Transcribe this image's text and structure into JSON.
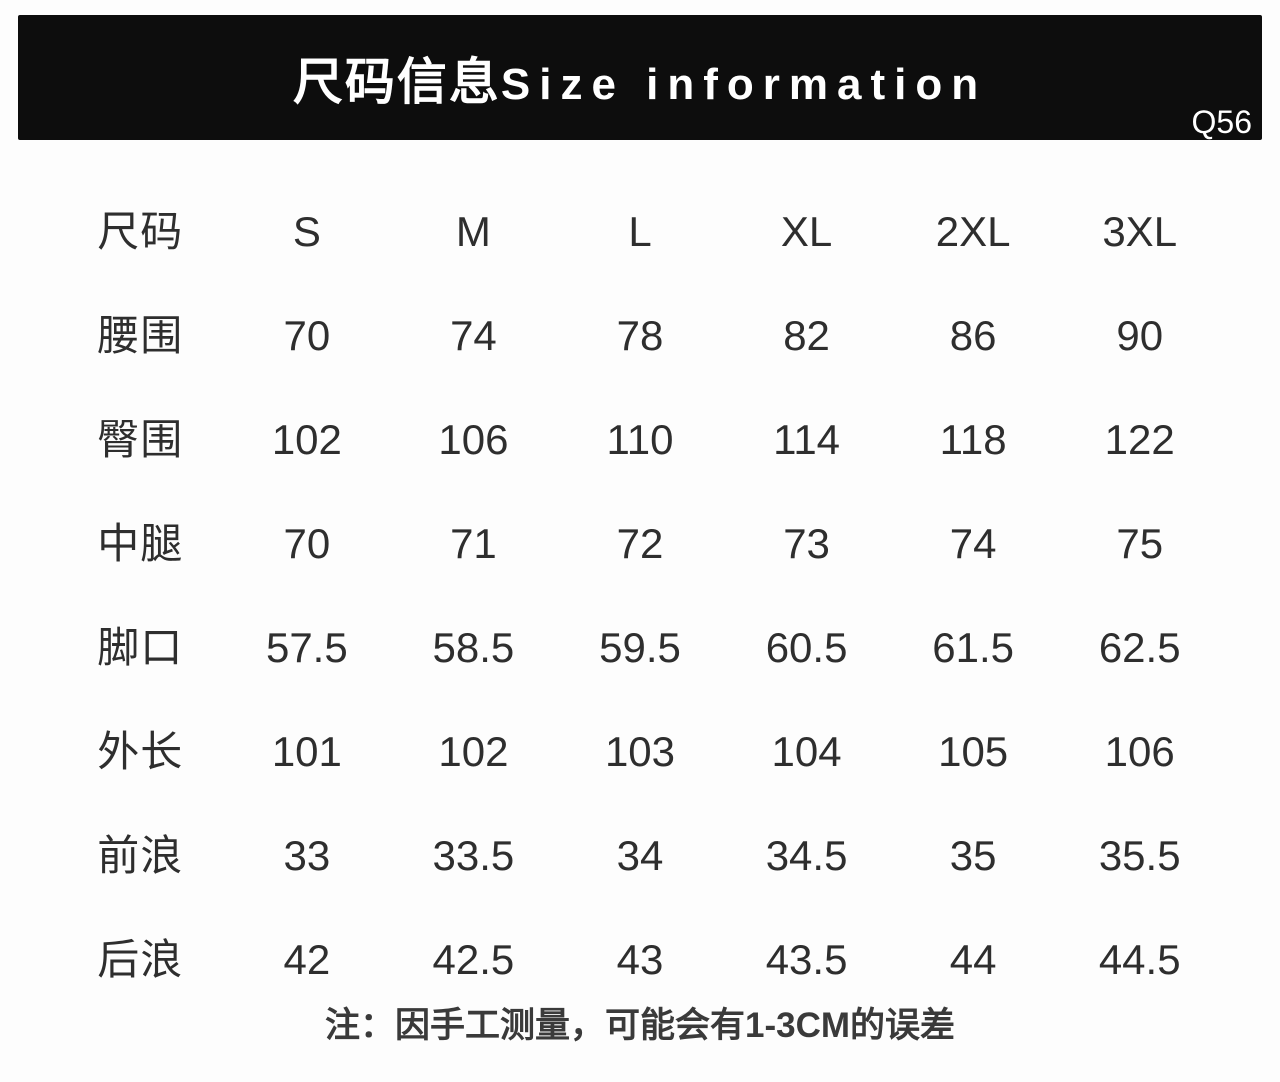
{
  "header": {
    "title_zh": "尺码信息",
    "title_en": "Size information",
    "code": "Q56"
  },
  "table": {
    "header_row": {
      "label": "尺码",
      "sizes": [
        "S",
        "M",
        "L",
        "XL",
        "2XL",
        "3XL"
      ]
    },
    "rows": [
      {
        "label": "腰围",
        "values": [
          "70",
          "74",
          "78",
          "82",
          "86",
          "90"
        ]
      },
      {
        "label": "臀围",
        "values": [
          "102",
          "106",
          "110",
          "114",
          "118",
          "122"
        ]
      },
      {
        "label": "中腿",
        "values": [
          "70",
          "71",
          "72",
          "73",
          "74",
          "75"
        ]
      },
      {
        "label": "脚口",
        "values": [
          "57.5",
          "58.5",
          "59.5",
          "60.5",
          "61.5",
          "62.5"
        ]
      },
      {
        "label": "外长",
        "values": [
          "101",
          "102",
          "103",
          "104",
          "105",
          "106"
        ]
      },
      {
        "label": "前浪",
        "values": [
          "33",
          "33.5",
          "34",
          "34.5",
          "35",
          "35.5"
        ]
      },
      {
        "label": "后浪",
        "values": [
          "42",
          "42.5",
          "43",
          "43.5",
          "44",
          "44.5"
        ]
      }
    ]
  },
  "footer": {
    "note": "注：因手工测量，可能会有1-3CM的误差"
  },
  "colors": {
    "header_bg": "#0d0d0d",
    "header_text": "#ffffff",
    "body_text": "#2e2e2e",
    "page_bg": "#fdfdfd"
  }
}
